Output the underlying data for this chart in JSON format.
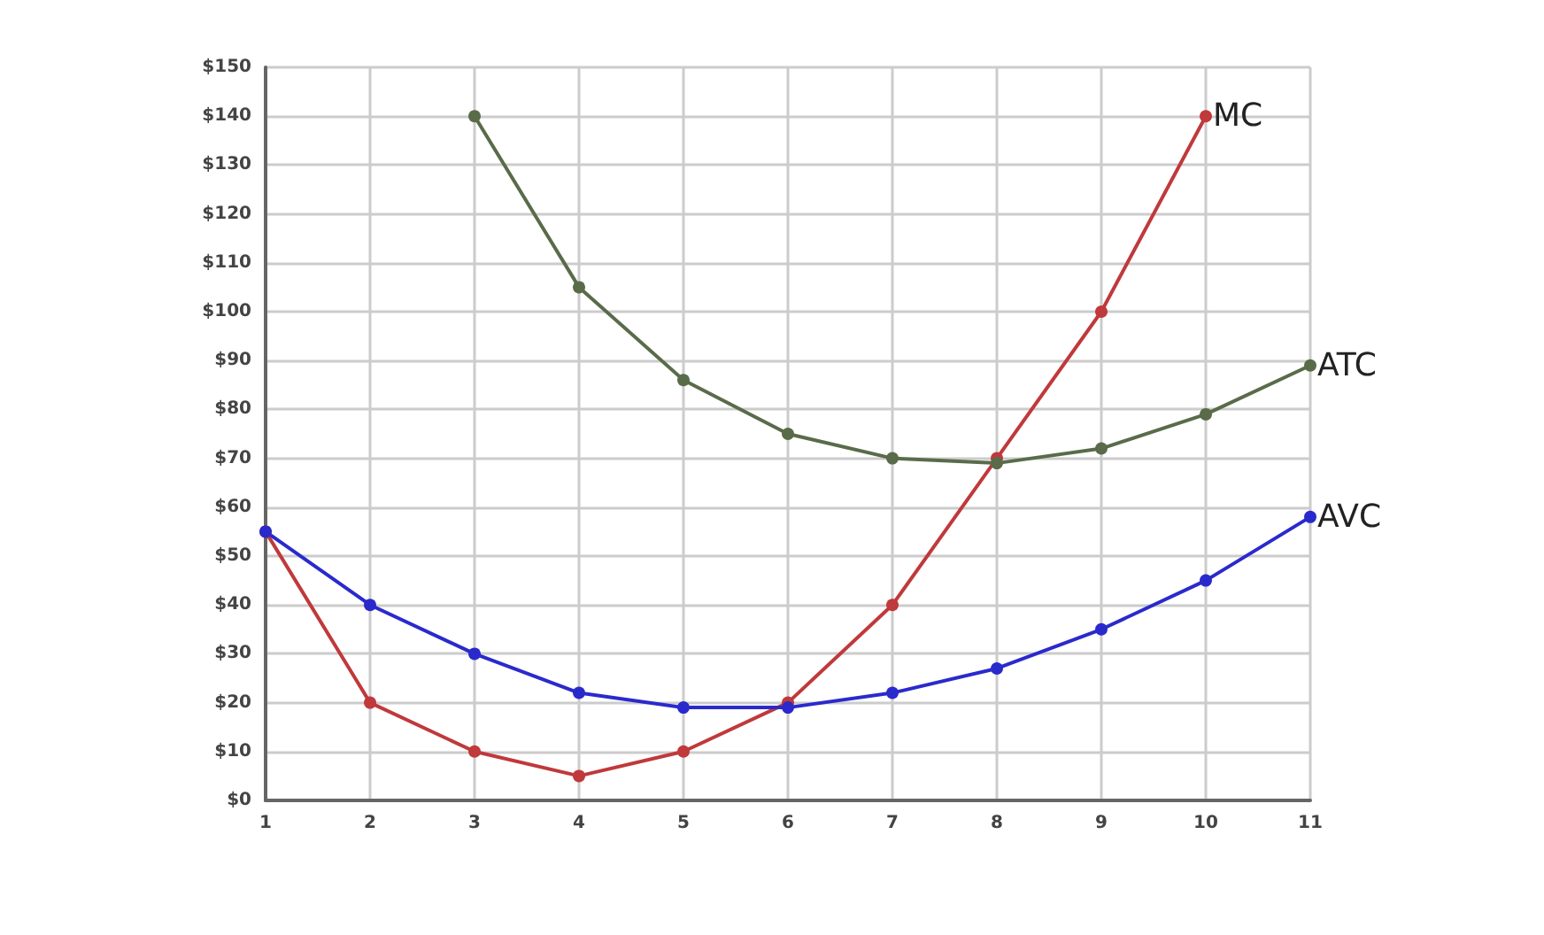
{
  "chart_data": {
    "type": "line",
    "x": [
      1,
      2,
      3,
      4,
      5,
      6,
      7,
      8,
      9,
      10,
      11
    ],
    "xlim": [
      1,
      11
    ],
    "xticks": [
      1,
      2,
      3,
      4,
      5,
      6,
      7,
      8,
      9,
      10,
      11
    ],
    "ylim": [
      0,
      150
    ],
    "yticks": [
      {
        "value": 0,
        "label": "$0"
      },
      {
        "value": 10,
        "label": "$10"
      },
      {
        "value": 20,
        "label": "$20"
      },
      {
        "value": 30,
        "label": "$30"
      },
      {
        "value": 40,
        "label": "$40"
      },
      {
        "value": 50,
        "label": "$50"
      },
      {
        "value": 60,
        "label": "$60"
      },
      {
        "value": 70,
        "label": "$70"
      },
      {
        "value": 80,
        "label": "$80"
      },
      {
        "value": 90,
        "label": "$90"
      },
      {
        "value": 100,
        "label": "$100"
      },
      {
        "value": 110,
        "label": "$110"
      },
      {
        "value": 120,
        "label": "$120"
      },
      {
        "value": 130,
        "label": "$130"
      },
      {
        "value": 140,
        "label": "$140"
      },
      {
        "value": 150,
        "label": "$150"
      }
    ],
    "grid": true,
    "marker": "circle",
    "line_style": "solid",
    "series": [
      {
        "name": "MC",
        "color": "#c0393b",
        "values": [
          55,
          20,
          10,
          5,
          10,
          20,
          40,
          70,
          100,
          140,
          null
        ]
      },
      {
        "name": "ATC",
        "color": "#5a6b4a",
        "values": [
          null,
          null,
          140,
          105,
          86,
          75,
          70,
          69,
          72,
          79,
          89
        ]
      },
      {
        "name": "AVC",
        "color": "#2a2acc",
        "values": [
          55,
          40,
          30,
          22,
          19,
          19,
          22,
          27,
          35,
          45,
          58
        ]
      }
    ]
  }
}
